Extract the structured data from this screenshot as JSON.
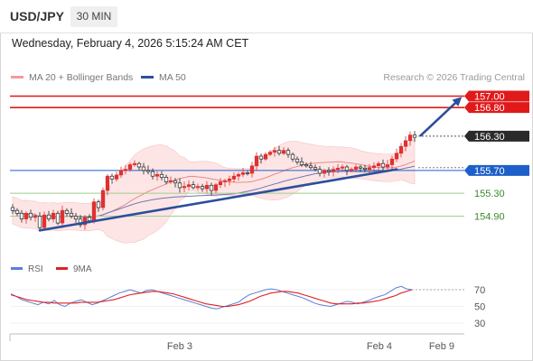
{
  "header": {
    "symbol": "USD/JPY",
    "timeframe_button": "30 MIN"
  },
  "datetime": "Wednesday, February 4, 2026 5:15:24 AM CET",
  "legend": {
    "bollinger": "MA 20 + Bollinger Bands",
    "ma50": "MA 50",
    "credit": "Research © 2026 Trading Central"
  },
  "rsi_legend": {
    "rsi": "RSI",
    "ma": "9MA"
  },
  "colors": {
    "resistance": "#e0191b",
    "support": "#3a8a2c",
    "pivot": "#1f5fc9",
    "trend": "#2b4f9c",
    "bull": "#e03030",
    "bear": "#222222",
    "ma20": "#e88a8a",
    "ma50": "#6f76b5",
    "band_fill": "#fde3e3",
    "rsi": "#5b7fd6",
    "rsi_ma": "#e02020"
  },
  "chart_data": [
    {
      "type": "candlestick",
      "title": "USD/JPY",
      "xlabel": "",
      "ylabel": "",
      "x_tick_labels": [
        "Feb 3",
        "Feb 4",
        "Feb 9"
      ],
      "ylim": [
        154.5,
        157.1
      ],
      "grid": false,
      "legend_position": "top-left",
      "current_price": 156.3,
      "levels": [
        {
          "label": "157.00",
          "value": 157.0,
          "kind": "resistance"
        },
        {
          "label": "156.80",
          "value": 156.8,
          "kind": "resistance"
        },
        {
          "label": "156.30",
          "value": 156.3,
          "kind": "current"
        },
        {
          "label": "155.70",
          "value": 155.7,
          "kind": "pivot"
        },
        {
          "label": "155.30",
          "value": 155.3,
          "kind": "support"
        },
        {
          "label": "154.90",
          "value": 154.9,
          "kind": "support"
        }
      ],
      "trendline": {
        "from": [
          0,
          154.65
        ],
        "to": [
          50,
          155.72
        ]
      },
      "projection": {
        "from": 156.3,
        "to": 157.0
      },
      "closes": [
        155.0,
        154.95,
        154.85,
        154.95,
        154.88,
        154.9,
        154.7,
        154.92,
        154.85,
        154.95,
        154.78,
        155.0,
        154.95,
        154.9,
        154.85,
        154.75,
        154.88,
        154.82,
        155.15,
        155.05,
        155.35,
        155.6,
        155.55,
        155.62,
        155.7,
        155.72,
        155.8,
        155.82,
        155.76,
        155.7,
        155.68,
        155.6,
        155.63,
        155.58,
        155.5,
        155.52,
        155.48,
        155.4,
        155.42,
        155.45,
        155.4,
        155.42,
        155.38,
        155.44,
        155.35,
        155.45,
        155.5,
        155.52,
        155.55,
        155.6,
        155.63,
        155.66,
        155.65,
        155.78,
        155.95,
        155.9,
        155.98,
        156.02,
        156.05,
        156.0,
        156.05,
        155.98,
        155.9,
        155.85,
        155.8,
        155.78,
        155.75,
        155.72,
        155.65,
        155.7,
        155.68,
        155.72,
        155.74,
        155.76,
        155.7,
        155.72,
        155.76,
        155.74,
        155.72,
        155.75,
        155.78,
        155.82,
        155.76,
        155.8,
        155.9,
        156.0,
        156.12,
        156.22,
        156.32,
        156.28
      ]
    },
    {
      "type": "line",
      "title": "RSI",
      "ylim": [
        25,
        80
      ],
      "y_tick_labels": [
        "70",
        "50",
        "30"
      ],
      "series": [
        {
          "name": "RSI",
          "values": [
            65,
            62,
            58,
            56,
            54,
            52,
            55,
            53,
            57,
            52,
            50,
            54,
            56,
            58,
            55,
            52,
            54,
            57,
            60,
            63,
            66,
            68,
            70,
            68,
            66,
            69,
            70,
            68,
            66,
            64,
            62,
            60,
            58,
            56,
            54,
            52,
            50,
            48,
            47,
            49,
            51,
            53,
            55,
            60,
            64,
            66,
            68,
            70,
            71,
            70,
            68,
            66,
            64,
            62,
            60,
            57,
            54,
            52,
            51,
            50,
            52,
            54,
            56,
            55,
            53,
            55,
            57,
            60,
            62,
            64,
            68,
            72,
            74,
            71,
            70
          ]
        },
        {
          "name": "9MA",
          "values": [
            64,
            62,
            60,
            58,
            57,
            56,
            55,
            55,
            54,
            54,
            54,
            54,
            54,
            55,
            55,
            55,
            55,
            56,
            57,
            58,
            60,
            62,
            64,
            65,
            66,
            67,
            68,
            68,
            67,
            66,
            65,
            63,
            61,
            59,
            57,
            55,
            53,
            52,
            51,
            50,
            50,
            51,
            52,
            54,
            56,
            59,
            62,
            64,
            66,
            67,
            68,
            68,
            67,
            66,
            64,
            62,
            60,
            58,
            56,
            54,
            53,
            53,
            53,
            53,
            54,
            54,
            55,
            56,
            57,
            59,
            61,
            63,
            66,
            68,
            70
          ]
        }
      ]
    }
  ]
}
